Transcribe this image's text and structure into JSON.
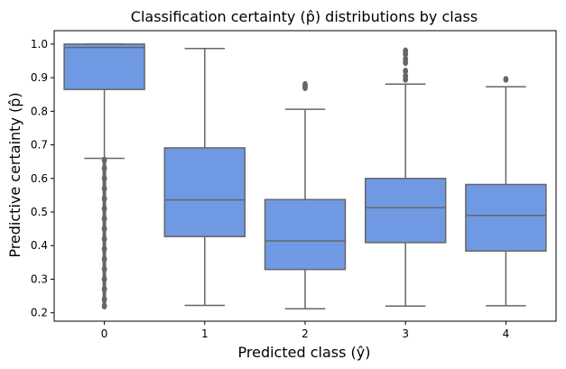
{
  "chart_data": {
    "type": "box",
    "title": "Classification certainty (p̂) distributions by class",
    "xlabel": "Predicted class (ŷ)",
    "ylabel": "Predictive certainty (p̂)",
    "categories": [
      "0",
      "1",
      "2",
      "3",
      "4"
    ],
    "ylim": [
      0.175,
      1.04
    ],
    "yticks": [
      0.2,
      0.3,
      0.4,
      0.5,
      0.6,
      0.7,
      0.8,
      0.9,
      1.0
    ],
    "ytick_labels": [
      "0.2",
      "0.3",
      "0.4",
      "0.5",
      "0.6",
      "0.7",
      "0.8",
      "0.9",
      "1.0"
    ],
    "grid": false,
    "box_color": "#6f9ae3",
    "line_color": "#666666",
    "boxes": [
      {
        "category": "0",
        "whisker_low": 0.66,
        "q1": 0.865,
        "median": 0.99,
        "q3": 1.0,
        "whisker_high": 1.0,
        "outliers": [
          0.655,
          0.63,
          0.6,
          0.57,
          0.54,
          0.51,
          0.48,
          0.45,
          0.42,
          0.39,
          0.36,
          0.33,
          0.3,
          0.27,
          0.24,
          0.22
        ]
      },
      {
        "category": "1",
        "whisker_low": 0.222,
        "q1": 0.427,
        "median": 0.536,
        "q3": 0.691,
        "whisker_high": 0.987,
        "outliers": []
      },
      {
        "category": "2",
        "whisker_low": 0.212,
        "q1": 0.329,
        "median": 0.414,
        "q3": 0.537,
        "whisker_high": 0.806,
        "outliers": [
          0.87,
          0.875,
          0.88
        ]
      },
      {
        "category": "3",
        "whisker_low": 0.22,
        "q1": 0.409,
        "median": 0.513,
        "q3": 0.6,
        "whisker_high": 0.881,
        "outliers": [
          0.895,
          0.905,
          0.92,
          0.945,
          0.955,
          0.97,
          0.98
        ]
      },
      {
        "category": "4",
        "whisker_low": 0.221,
        "q1": 0.384,
        "median": 0.49,
        "q3": 0.582,
        "whisker_high": 0.873,
        "outliers": [
          0.895
        ]
      }
    ]
  }
}
